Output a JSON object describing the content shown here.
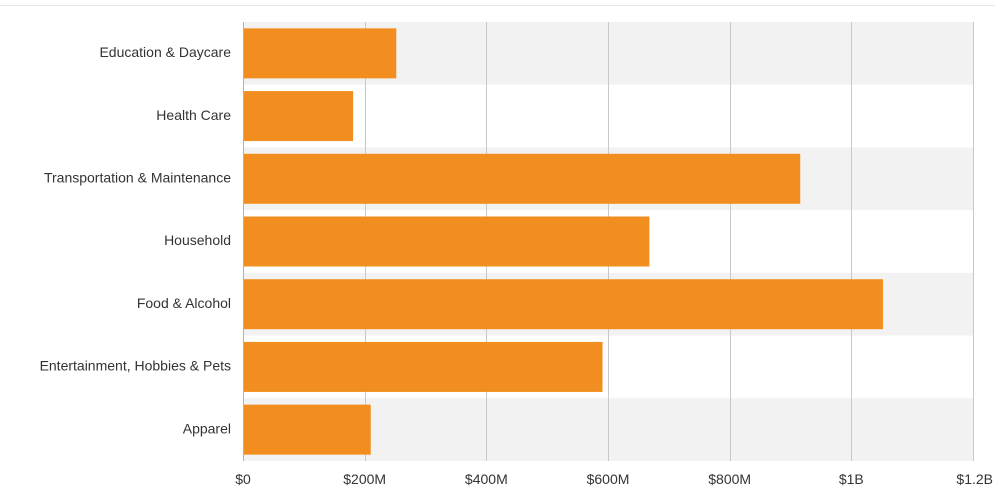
{
  "chart_data": {
    "type": "bar",
    "orientation": "horizontal",
    "categories": [
      "Education & Daycare",
      "Health Care",
      "Transportation & Maintenance",
      "Household",
      "Food & Alcohol",
      "Entertainment, Hobbies & Pets",
      "Apparel"
    ],
    "values": [
      252000000,
      181000000,
      916000000,
      668000000,
      1052000000,
      591000000,
      210000000
    ],
    "xlim": [
      0,
      1200000000
    ],
    "x_ticks": [
      {
        "value": 0,
        "label": "$0"
      },
      {
        "value": 200000000,
        "label": "$200M"
      },
      {
        "value": 400000000,
        "label": "$400M"
      },
      {
        "value": 600000000,
        "label": "$600M"
      },
      {
        "value": 800000000,
        "label": "$800M"
      },
      {
        "value": 1000000000,
        "label": "$1B"
      },
      {
        "value": 1200000000,
        "label": "$1.2B"
      }
    ],
    "title": "",
    "xlabel": "",
    "ylabel": "",
    "grid": true,
    "legend": "none",
    "bar_color": "#f28e1f",
    "band_color": "#f2f2f2",
    "grid_color": "#c8c8c8"
  }
}
